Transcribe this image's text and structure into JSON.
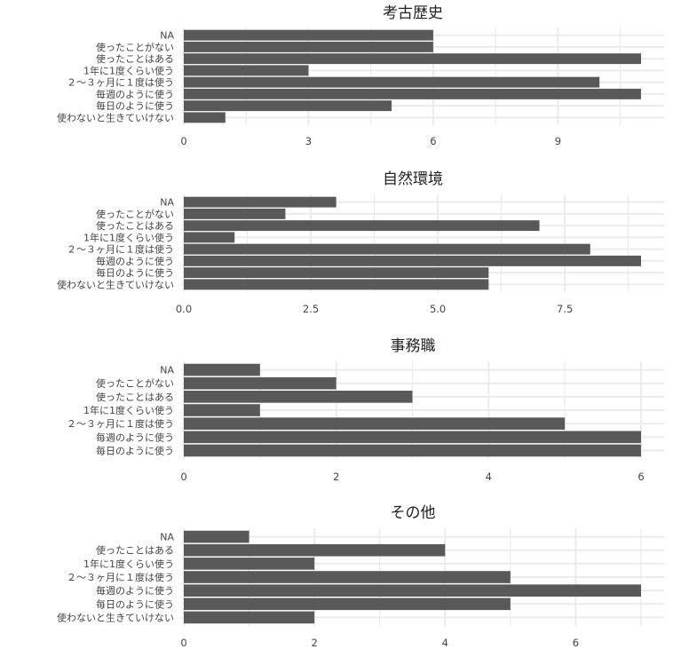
{
  "chart_data": [
    {
      "type": "bar",
      "orientation": "horizontal",
      "title": "考古歴史",
      "categories": [
        "NA",
        "使ったことがない",
        "使ったことはある",
        "1年に1度くらい使う",
        "２～３ヶ月に１度は使う",
        "毎週のように使う",
        "毎日のように使う",
        "使わないと生きていけない"
      ],
      "values": [
        6,
        6,
        11,
        3,
        10,
        11,
        5,
        1
      ],
      "xlim": [
        0,
        11
      ],
      "xticks": [
        0,
        3,
        6,
        9
      ],
      "xtick_labels": [
        "0",
        "3",
        "6",
        "9"
      ],
      "grid": true,
      "bar_color": "#595959"
    },
    {
      "type": "bar",
      "orientation": "horizontal",
      "title": "自然環境",
      "categories": [
        "NA",
        "使ったことがない",
        "使ったことはある",
        "1年に1度くらい使う",
        "２～３ヶ月に１度は使う",
        "毎週のように使う",
        "毎日のように使う",
        "使わないと生きていけない"
      ],
      "values": [
        3,
        2,
        7,
        1,
        8,
        9,
        6,
        6
      ],
      "xlim": [
        0,
        9
      ],
      "xticks": [
        0,
        2.5,
        5,
        7.5
      ],
      "xtick_labels": [
        "0.0",
        "2.5",
        "5.0",
        "7.5"
      ],
      "grid": true,
      "bar_color": "#595959"
    },
    {
      "type": "bar",
      "orientation": "horizontal",
      "title": "事務職",
      "categories": [
        "NA",
        "使ったことがない",
        "使ったことはある",
        "1年に1度くらい使う",
        "２～３ヶ月に１度は使う",
        "毎週のように使う",
        "毎日のように使う"
      ],
      "values": [
        1,
        2,
        3,
        1,
        5,
        6,
        6
      ],
      "xlim": [
        0,
        6
      ],
      "xticks": [
        0,
        2,
        4,
        6
      ],
      "xtick_labels": [
        "0",
        "2",
        "4",
        "6"
      ],
      "grid": true,
      "bar_color": "#595959"
    },
    {
      "type": "bar",
      "orientation": "horizontal",
      "title": "その他",
      "categories": [
        "NA",
        "使ったことはある",
        "1年に1度くらい使う",
        "２～３ヶ月に１度は使う",
        "毎週のように使う",
        "毎日のように使う",
        "使わないと生きていけない"
      ],
      "values": [
        1,
        4,
        2,
        5,
        7,
        5,
        2
      ],
      "xlim": [
        0,
        7
      ],
      "xticks": [
        0,
        2,
        4,
        6
      ],
      "xtick_labels": [
        "0",
        "2",
        "4",
        "6"
      ],
      "grid": true,
      "bar_color": "#595959"
    }
  ]
}
